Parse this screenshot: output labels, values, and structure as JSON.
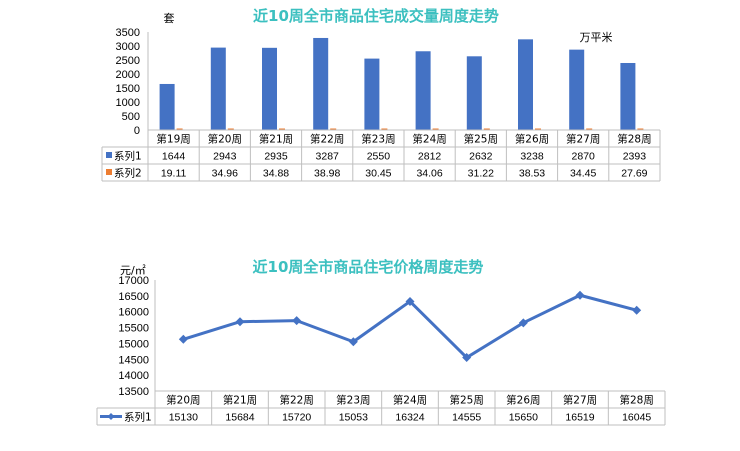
{
  "chart_data": [
    {
      "type": "bar",
      "title": "近10周全市商品住宅成交量周度走势",
      "left_unit": "套",
      "right_unit": "万平米",
      "categories": [
        "第19周",
        "第20周",
        "第21周",
        "第22周",
        "第23周",
        "第24周",
        "第25周",
        "第26周",
        "第27周",
        "第28周"
      ],
      "ylim": [
        0,
        3500
      ],
      "yticks": [
        "0",
        "500",
        "1000",
        "1500",
        "2000",
        "2500",
        "3000",
        "3500"
      ],
      "grid": false,
      "legend": "table",
      "series": [
        {
          "name": "系列1",
          "color": "#4472c4",
          "values": [
            1644,
            2943,
            2935,
            3287,
            2550,
            2812,
            2632,
            3238,
            2870,
            2393
          ],
          "labels": [
            "1644",
            "2943",
            "2935",
            "3287",
            "2550",
            "2812",
            "2632",
            "3238",
            "2870",
            "2393"
          ]
        },
        {
          "name": "系列2",
          "color": "#ed7d31",
          "values": [
            19.11,
            34.96,
            34.88,
            38.98,
            30.45,
            34.06,
            31.22,
            38.53,
            34.45,
            27.69
          ],
          "labels": [
            "19.11",
            "34.96",
            "34.88",
            "38.98",
            "30.45",
            "34.06",
            "31.22",
            "38.53",
            "34.45",
            "27.69"
          ]
        }
      ]
    },
    {
      "type": "line",
      "title": "近10周全市商品住宅价格周度走势",
      "unit": "元/㎡",
      "categories": [
        "第20周",
        "第21周",
        "第22周",
        "第23周",
        "第24周",
        "第25周",
        "第26周",
        "第27周",
        "第28周"
      ],
      "ylim": [
        13500,
        17000
      ],
      "yticks": [
        "13500",
        "14000",
        "14500",
        "15000",
        "15500",
        "16000",
        "16500",
        "17000"
      ],
      "grid": false,
      "legend": "table",
      "series": [
        {
          "name": "系列1",
          "color": "#4472c4",
          "values": [
            15130,
            15684,
            15720,
            15053,
            16324,
            14555,
            15650,
            16519,
            16045
          ],
          "labels": [
            "15130",
            "15684",
            "15720",
            "15053",
            "16324",
            "14555",
            "15650",
            "16519",
            "16045"
          ]
        }
      ]
    }
  ]
}
